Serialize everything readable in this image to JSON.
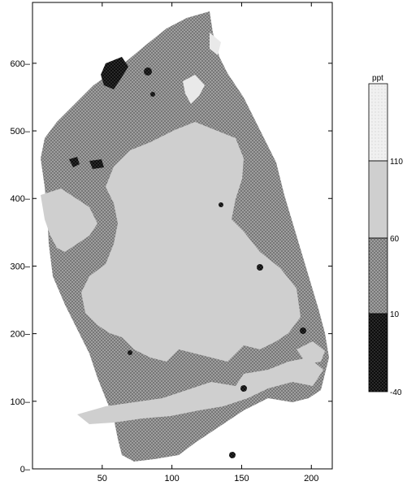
{
  "map": {
    "x_axis": {
      "range": [
        0,
        215
      ],
      "ticks": [
        50,
        100,
        150,
        200
      ]
    },
    "y_axis": {
      "range": [
        0,
        690
      ],
      "ticks": [
        0,
        100,
        200,
        300,
        400,
        500,
        600
      ]
    },
    "colors": {
      "below_10": "#111111",
      "from_10_to_60": "#6e6e6e",
      "from_60_to_110": "#cfcfcf",
      "above_110": "#e9e9e9",
      "frame": "#000000"
    }
  },
  "legend": {
    "unit": "ppt",
    "breaks": [
      "110",
      "60",
      "10",
      "-40"
    ]
  }
}
